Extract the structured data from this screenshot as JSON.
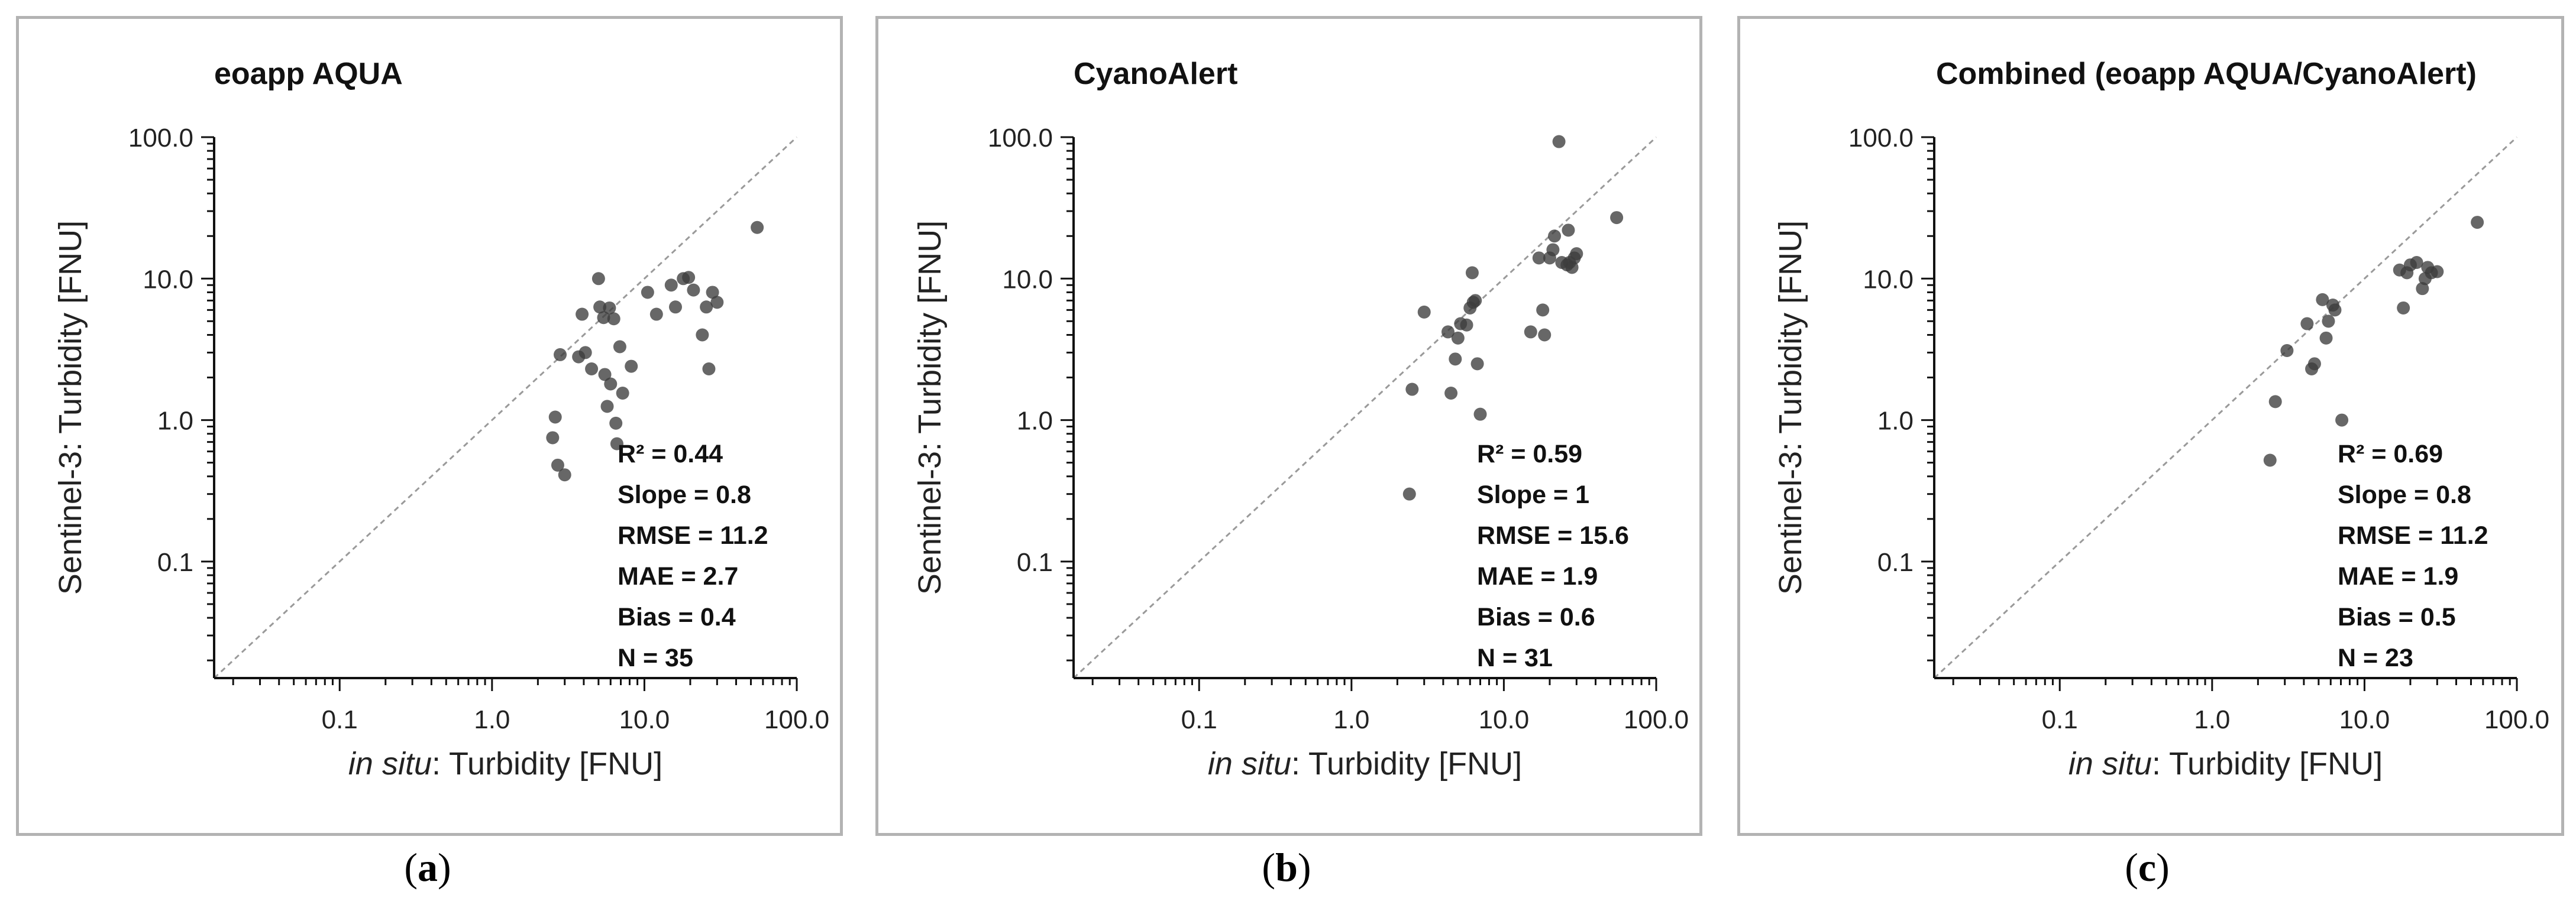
{
  "shared": {
    "xlabel_italic": "in situ",
    "xlabel_rest": ": Turbidity [FNU]",
    "ylabel": "Sentinel-3: Turbidity [FNU]",
    "x_ticks": [
      "0.1",
      "1.0",
      "10.0",
      "100.0"
    ],
    "y_ticks": [
      "0.1",
      "1.0",
      "10.0",
      "100.0"
    ],
    "point_color": "#3c3c3c",
    "one_to_one_color": "#9a9a9a"
  },
  "chart_data": [
    {
      "type": "scatter",
      "panel_label": "a",
      "title": "eoapp AQUA",
      "xscale": "log",
      "yscale": "log",
      "xlim": [
        0.015,
        100
      ],
      "ylim": [
        0.015,
        100
      ],
      "stats": [
        "R² = 0.44",
        "Slope = 0.8",
        "RMSE = 11.2",
        "MAE = 2.7",
        "Bias = 0.4",
        "N = 35"
      ],
      "points": [
        [
          2.5,
          0.75
        ],
        [
          2.6,
          1.05
        ],
        [
          2.7,
          0.48
        ],
        [
          2.8,
          2.9
        ],
        [
          3.0,
          0.41
        ],
        [
          3.7,
          2.8
        ],
        [
          3.9,
          5.6
        ],
        [
          4.1,
          3.0
        ],
        [
          4.5,
          2.3
        ],
        [
          5.0,
          10.0
        ],
        [
          5.1,
          6.3
        ],
        [
          5.4,
          5.3
        ],
        [
          5.5,
          2.1
        ],
        [
          5.7,
          1.25
        ],
        [
          5.9,
          6.2
        ],
        [
          6.0,
          1.8
        ],
        [
          6.3,
          5.2
        ],
        [
          6.5,
          0.95
        ],
        [
          6.6,
          0.68
        ],
        [
          6.9,
          3.3
        ],
        [
          7.2,
          1.55
        ],
        [
          8.2,
          2.4
        ],
        [
          10.5,
          8.0
        ],
        [
          12.0,
          5.6
        ],
        [
          15.0,
          9.0
        ],
        [
          16.0,
          6.3
        ],
        [
          18.0,
          10.0
        ],
        [
          19.5,
          10.2
        ],
        [
          21.0,
          8.3
        ],
        [
          24.0,
          4.0
        ],
        [
          25.5,
          6.3
        ],
        [
          26.5,
          2.3
        ],
        [
          28.0,
          8.0
        ],
        [
          30.0,
          6.8
        ],
        [
          55.0,
          23.0
        ]
      ]
    },
    {
      "type": "scatter",
      "panel_label": "b",
      "title": "CyanoAlert",
      "xscale": "log",
      "yscale": "log",
      "xlim": [
        0.015,
        100
      ],
      "ylim": [
        0.015,
        100
      ],
      "stats": [
        "R² = 0.59",
        "Slope = 1",
        "RMSE = 15.6",
        "MAE = 1.9",
        "Bias = 0.6",
        "N = 31"
      ],
      "points": [
        [
          2.4,
          0.3
        ],
        [
          2.5,
          1.65
        ],
        [
          3.0,
          5.8
        ],
        [
          4.3,
          4.2
        ],
        [
          4.5,
          1.55
        ],
        [
          4.8,
          2.7
        ],
        [
          5.0,
          3.8
        ],
        [
          5.2,
          4.8
        ],
        [
          5.7,
          4.7
        ],
        [
          6.0,
          6.2
        ],
        [
          6.2,
          11.0
        ],
        [
          6.3,
          6.8
        ],
        [
          6.5,
          7.0
        ],
        [
          6.7,
          2.5
        ],
        [
          7.0,
          1.1
        ],
        [
          15.0,
          4.2
        ],
        [
          17.0,
          14.0
        ],
        [
          18.0,
          6.0
        ],
        [
          18.5,
          4.0
        ],
        [
          20.0,
          14.0
        ],
        [
          21.0,
          16.0
        ],
        [
          21.5,
          20.0
        ],
        [
          23.0,
          93.0
        ],
        [
          24.0,
          13.0
        ],
        [
          26.0,
          12.5
        ],
        [
          26.5,
          22.0
        ],
        [
          27.0,
          13.0
        ],
        [
          28.0,
          12.0
        ],
        [
          29.0,
          14.0
        ],
        [
          30.0,
          15.0
        ],
        [
          55.0,
          27.0
        ]
      ]
    },
    {
      "type": "scatter",
      "panel_label": "c",
      "title": "Combined (eoapp AQUA/CyanoAlert)",
      "xscale": "log",
      "yscale": "log",
      "xlim": [
        0.015,
        100
      ],
      "ylim": [
        0.015,
        100
      ],
      "stats": [
        "R² = 0.69",
        "Slope = 0.8",
        "RMSE = 11.2",
        "MAE = 1.9",
        "Bias = 0.5",
        "N = 23"
      ],
      "points": [
        [
          2.4,
          0.52
        ],
        [
          2.6,
          1.35
        ],
        [
          3.1,
          3.1
        ],
        [
          4.2,
          4.8
        ],
        [
          4.5,
          2.3
        ],
        [
          4.7,
          2.5
        ],
        [
          5.3,
          7.1
        ],
        [
          5.6,
          3.8
        ],
        [
          5.8,
          5.0
        ],
        [
          6.2,
          6.5
        ],
        [
          6.4,
          6.0
        ],
        [
          7.1,
          1.0
        ],
        [
          17.0,
          11.5
        ],
        [
          18.0,
          6.2
        ],
        [
          19.0,
          11.0
        ],
        [
          20.0,
          12.5
        ],
        [
          22.0,
          13.0
        ],
        [
          24.0,
          8.5
        ],
        [
          25.0,
          10.0
        ],
        [
          26.0,
          12.0
        ],
        [
          27.5,
          11.0
        ],
        [
          30.0,
          11.2
        ],
        [
          55.0,
          25.0
        ]
      ]
    }
  ]
}
